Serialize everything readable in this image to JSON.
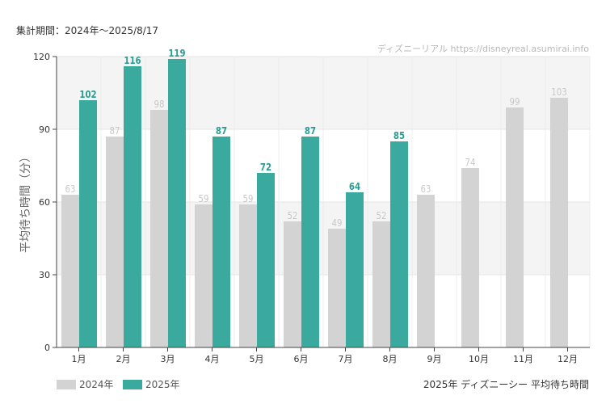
{
  "period_label": "集計期間：2024年～2025/8/17",
  "footer_title": "2025年 ディズニーシー 平均待ち時間",
  "chart_data": {
    "type": "bar",
    "title": "",
    "xlabel": "",
    "ylabel": "平均待ち時間（分）",
    "ylim": [
      0,
      120
    ],
    "yticks": [
      0,
      30,
      60,
      90,
      120
    ],
    "grid": true,
    "legend_position": "bottom-left",
    "watermark": "ディズニーリアル https://disneyreal.asumirai.info",
    "categories": [
      "1月",
      "2月",
      "3月",
      "4月",
      "5月",
      "6月",
      "7月",
      "8月",
      "9月",
      "10月",
      "11月",
      "12月"
    ],
    "series": [
      {
        "name": "2024年",
        "color": "#d3d3d3",
        "label_color": "#c8c8c8",
        "values": [
          63,
          87,
          98,
          59,
          59,
          52,
          49,
          52,
          63,
          74,
          99,
          103
        ]
      },
      {
        "name": "2025年",
        "color": "#3aaa9f",
        "label_color": "#2a9d91",
        "values": [
          102,
          116,
          119,
          87,
          72,
          87,
          64,
          85,
          null,
          null,
          null,
          null
        ]
      }
    ]
  }
}
